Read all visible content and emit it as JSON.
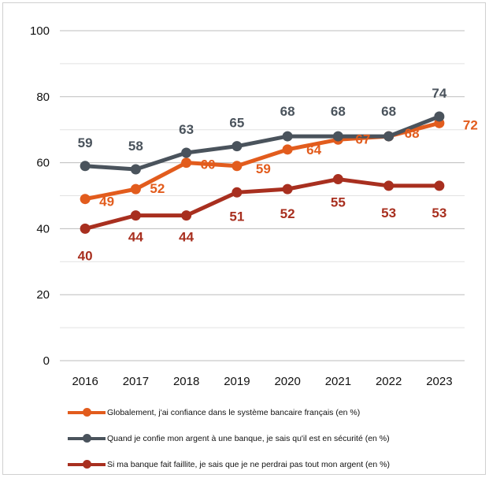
{
  "chart_data": {
    "type": "line",
    "x": [
      "2016",
      "2017",
      "2018",
      "2019",
      "2020",
      "2021",
      "2022",
      "2023"
    ],
    "ylim": [
      0,
      100
    ],
    "yticks": [
      0,
      20,
      40,
      60,
      80,
      100
    ],
    "grid": true,
    "legend_position": "bottom",
    "series": [
      {
        "name": "Globalement, j'ai confiance dans le système bancaire français (en %)",
        "color": "#e25c1d",
        "values": [
          49,
          52,
          60,
          59,
          64,
          67,
          68,
          72
        ]
      },
      {
        "name": "Quand je confie mon argent à une banque, je sais qu'il est en sécurité (en %)",
        "color": "#4a535c",
        "values": [
          59,
          58,
          63,
          65,
          68,
          68,
          68,
          74
        ]
      },
      {
        "name": "Si ma banque fait faillite, je sais que je ne perdrai pas tout mon argent (en %)",
        "color": "#a82f1f",
        "values": [
          40,
          44,
          44,
          51,
          52,
          55,
          53,
          53
        ]
      }
    ]
  }
}
